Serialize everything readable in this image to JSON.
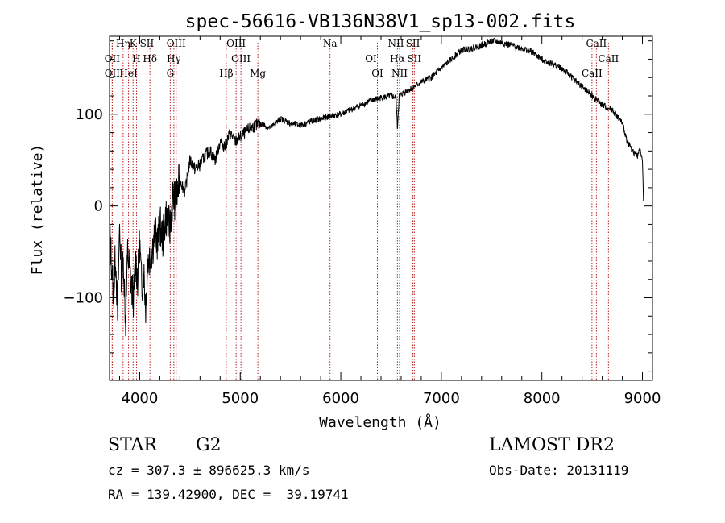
{
  "chart_data": {
    "type": "line",
    "title": "spec-56616-VB136N38V1_sp13-002.fits",
    "xlabel": "Wavelength (Å)",
    "ylabel": "Flux (relative)",
    "xlim": [
      3700,
      9100
    ],
    "ylim": [
      -190,
      185
    ],
    "x_ticks": [
      4000,
      5000,
      6000,
      7000,
      8000,
      9000
    ],
    "y_ticks": [
      -100,
      0,
      100
    ],
    "grid": false,
    "series": [
      {
        "x": [
          3700,
          3720,
          3740,
          3760,
          3780,
          3800,
          3820,
          3840,
          3860,
          3880,
          3900,
          3920,
          3940,
          3960,
          3980,
          4000,
          4020,
          4040,
          4060,
          4080,
          4100,
          4120,
          4150,
          4180,
          4200,
          4230,
          4260,
          4300,
          4330,
          4360,
          4400,
          4450,
          4500,
          4550,
          4600,
          4650,
          4700,
          4750,
          4800,
          4850,
          4900,
          4950,
          5000,
          5100,
          5200,
          5300,
          5400,
          5500,
          5600,
          5700,
          5800,
          5900,
          6000,
          6100,
          6200,
          6300,
          6400,
          6500,
          6550,
          6563,
          6580,
          6650,
          6700,
          6800,
          6900,
          7000,
          7100,
          7200,
          7300,
          7400,
          7500,
          7600,
          7700,
          7800,
          7900,
          8000,
          8100,
          8200,
          8300,
          8400,
          8500,
          8600,
          8700,
          8800,
          8850,
          8900,
          8950,
          8980,
          9000,
          9010
        ],
        "y": [
          -30,
          -60,
          -100,
          -50,
          -120,
          -20,
          -80,
          -60,
          -130,
          -50,
          -70,
          -90,
          -100,
          -60,
          -80,
          -40,
          -90,
          -70,
          -110,
          -60,
          -55,
          -50,
          -30,
          -40,
          -20,
          -35,
          -10,
          -25,
          10,
          5,
          30,
          15,
          50,
          40,
          45,
          55,
          60,
          50,
          70,
          65,
          80,
          70,
          75,
          85,
          90,
          85,
          95,
          90,
          88,
          92,
          95,
          98,
          100,
          105,
          110,
          115,
          118,
          120,
          118,
          85,
          120,
          125,
          128,
          135,
          140,
          150,
          160,
          170,
          172,
          175,
          180,
          178,
          175,
          172,
          168,
          160,
          155,
          150,
          140,
          130,
          120,
          110,
          105,
          90,
          70,
          60,
          55,
          62,
          50,
          5
        ]
      }
    ],
    "line_labels": [
      {
        "label": "Hη",
        "wave": 3835
      },
      {
        "label": "OII",
        "wave": 3727
      },
      {
        "label": "OII",
        "wave": 3727
      },
      {
        "label": "K",
        "wave": 3934
      },
      {
        "label": "H",
        "wave": 3968
      },
      {
        "label": "HeI",
        "wave": 3889
      },
      {
        "label": "SII",
        "wave": 4072
      },
      {
        "label": "Hδ",
        "wave": 4102
      },
      {
        "label": "G",
        "wave": 4304
      },
      {
        "label": "OIII",
        "wave": 4363
      },
      {
        "label": "Hγ",
        "wave": 4340
      },
      {
        "label": "Hβ",
        "wave": 4861
      },
      {
        "label": "OIII",
        "wave": 4959
      },
      {
        "label": "OIII",
        "wave": 5007
      },
      {
        "label": "Mg",
        "wave": 5175
      },
      {
        "label": "Na",
        "wave": 5893
      },
      {
        "label": "OI",
        "wave": 6300
      },
      {
        "label": "OI",
        "wave": 6364
      },
      {
        "label": "NII",
        "wave": 6548
      },
      {
        "label": "Hα",
        "wave": 6563
      },
      {
        "label": "NII",
        "wave": 6584
      },
      {
        "label": "SII",
        "wave": 6717
      },
      {
        "label": "SII",
        "wave": 6731
      },
      {
        "label": "CaII",
        "wave": 8498
      },
      {
        "label": "CaII",
        "wave": 8542
      },
      {
        "label": "CaII",
        "wave": 8662
      }
    ]
  },
  "footer": {
    "object_type": "STAR",
    "subclass": "G2",
    "redshift": "cz = 307.3 ± 896625.3 km/s",
    "coords": "RA = 139.42900, DEC =  39.19741",
    "survey": "LAMOST DR2",
    "obs_date": "Obs-Date: 20131119"
  }
}
